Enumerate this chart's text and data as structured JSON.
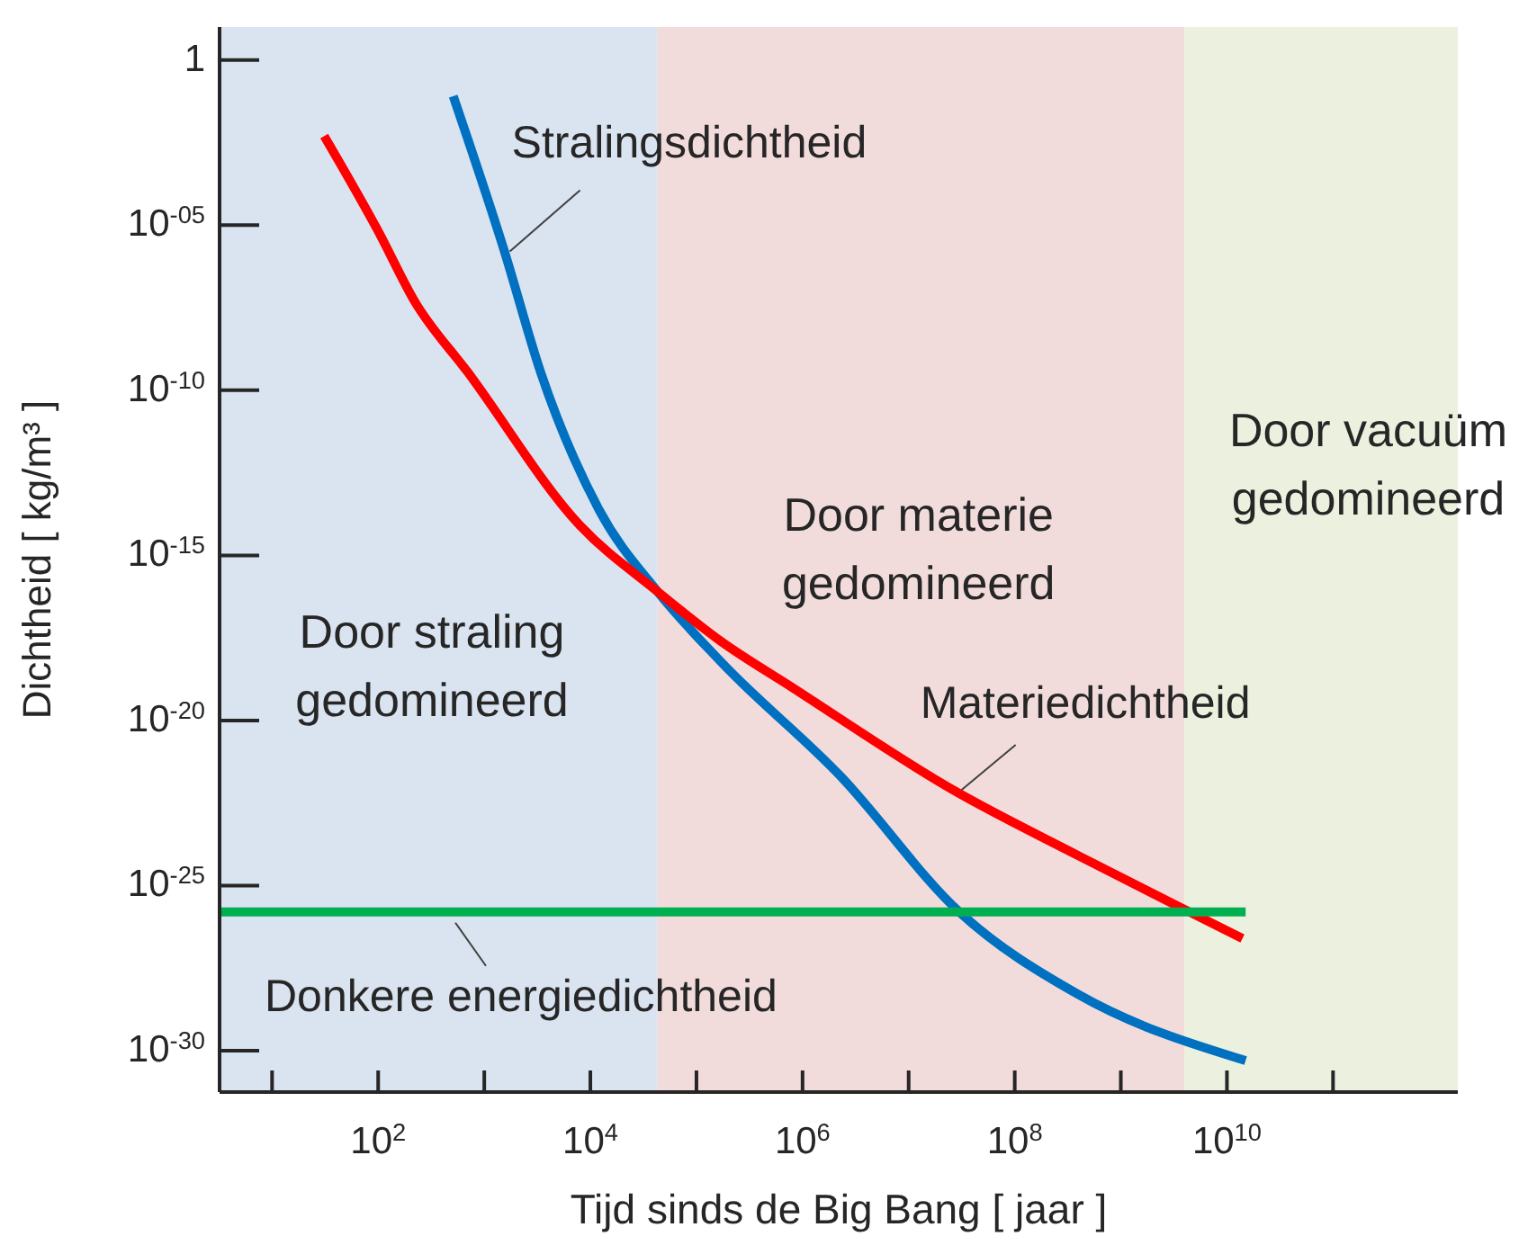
{
  "chart_data": {
    "type": "line",
    "xlabel": "Tijd sinds de Big Bang [ jaar ]",
    "ylabel": "Dichtheid [ kg/m³ ]",
    "log": "xy",
    "grid": false,
    "legend": false,
    "marker": "none",
    "line_style": "solid",
    "xlim": [
      3.2,
      1500000000000.0
    ],
    "xticks": [
      {
        "value": 10,
        "label": null
      },
      {
        "value": 100,
        "label": "10$^{2}$"
      },
      {
        "value": 1000,
        "label": null
      },
      {
        "value": 10000,
        "label": "10$^{4}$"
      },
      {
        "value": 100000,
        "label": null
      },
      {
        "value": 1000000,
        "label": "10$^{6}$"
      },
      {
        "value": 10000000,
        "label": null
      },
      {
        "value": 100000000,
        "label": "10$^{8}$"
      },
      {
        "value": 1000000000,
        "label": null
      },
      {
        "value": 10000000000,
        "label": "10$^{10}$"
      },
      {
        "value": 100000000000,
        "label": null
      }
    ],
    "ylim": [
      5.6e-32,
      10
    ],
    "yticks": [
      1,
      {
        "value": 1e-05,
        "label": "10$^{-05}$"
      },
      {
        "value": 1e-10,
        "label": "10$^{-10}$"
      },
      {
        "value": 1e-15,
        "label": "10$^{-15}$"
      },
      {
        "value": 1e-20,
        "label": "10$^{-20}$"
      },
      {
        "value": 1e-25,
        "label": "10$^{-25}$"
      },
      {
        "value": 1e-30,
        "label": "10$^{-30}$"
      }
    ],
    "bands": [
      {
        "axis": "x",
        "from": 3.2,
        "to": 43000,
        "label": "Door straling\ngedomineerd",
        "color": "#dae3f0"
      },
      {
        "axis": "x",
        "from": 43000,
        "to": 4000000000,
        "label": "Door materie\ngedomineerd",
        "color": "#f2dcdb"
      },
      {
        "axis": "x",
        "from": 4000000000,
        "to": 1500000000000.0,
        "label": "Door vacuüm\ngedomineerd",
        "color": "#ebf1de"
      }
    ],
    "series": [
      {
        "name": "Stralingsdichtheid",
        "color": "#0070c0",
        "x": [
          510,
          1550,
          3400,
          12000,
          43000,
          170000,
          2300000,
          30000000,
          400000000,
          15000000000
        ],
        "values": [
          0.08,
          1.6e-06,
          3.5e-10,
          2.5e-14,
          8e-17,
          6e-19,
          2e-22,
          1.6e-26,
          5e-29,
          5e-31
        ]
      },
      {
        "name": "Materiedichtheid",
        "color": "#ff0000",
        "x": [
          31,
          100,
          220,
          700,
          8000,
          43000,
          170000,
          800000,
          26000000,
          400000000,
          3000000000,
          14000000000
        ],
        "values": [
          0.005,
          6.6e-06,
          5e-08,
          3.5e-10,
          8e-15,
          8e-17,
          2.5e-18,
          1e-19,
          8e-23,
          8e-25,
          3e-26,
          2.5e-27
        ]
      },
      {
        "name": "Donkere energiedichtheid",
        "color": "#00b050",
        "x": [
          3.2,
          15000000000
        ],
        "values": [
          1.6e-26,
          1.6e-26
        ]
      }
    ]
  }
}
